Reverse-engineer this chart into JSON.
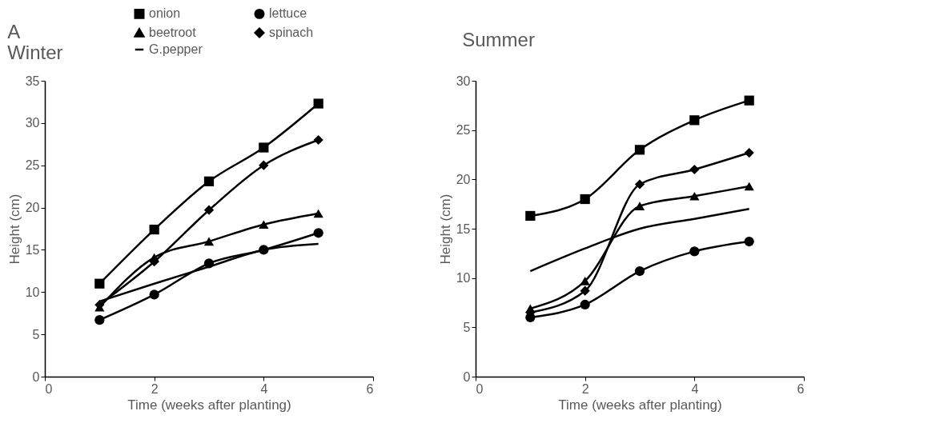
{
  "chart_data": [
    {
      "type": "line",
      "title": "A",
      "subtitle": "Winter",
      "xlabel": "Time (weeks after planting)",
      "ylabel": "Height (cm)",
      "x": [
        1,
        2,
        3,
        4,
        5
      ],
      "xlim": [
        0,
        6
      ],
      "xticks": [
        0,
        2,
        4,
        6
      ],
      "ylim": [
        0,
        35
      ],
      "yticks": [
        0,
        5,
        10,
        15,
        20,
        25,
        30,
        35
      ],
      "grid": false,
      "legend": "top",
      "series": [
        {
          "name": "onion",
          "color": "#000000",
          "marker": "square",
          "values": [
            11,
            17.4,
            23.1,
            27.1,
            32.3
          ]
        },
        {
          "name": "beetroot",
          "color": "#000000",
          "marker": "triangle",
          "values": [
            8.2,
            14.1,
            16,
            18,
            19.3
          ]
        },
        {
          "name": "G.pepper",
          "color": "#000000",
          "marker": "none",
          "values": [
            8.9,
            11,
            13,
            15,
            15.7
          ]
        },
        {
          "name": "lettuce",
          "color": "#000000",
          "marker": "circle",
          "values": [
            6.7,
            9.7,
            13.4,
            15,
            17
          ]
        },
        {
          "name": "spinach",
          "color": "#000000",
          "marker": "diamond",
          "values": [
            8.5,
            13.6,
            19.7,
            25,
            28
          ]
        }
      ]
    },
    {
      "type": "line",
      "title": "Summer",
      "xlabel": "Time (weeks after planting)",
      "ylabel": "Height (cm)",
      "x": [
        1,
        2,
        3,
        4,
        5
      ],
      "xlim": [
        0,
        6
      ],
      "xticks": [
        0,
        2,
        4,
        6
      ],
      "ylim": [
        0,
        30
      ],
      "yticks": [
        0,
        5,
        10,
        15,
        20,
        25,
        30
      ],
      "grid": false,
      "legend": "top",
      "series": [
        {
          "name": "onion",
          "color": "#000000",
          "marker": "square",
          "values": [
            16.3,
            18,
            23,
            26,
            28
          ]
        },
        {
          "name": "beetroot",
          "color": "#000000",
          "marker": "triangle",
          "values": [
            6.9,
            9.7,
            17.3,
            18.3,
            19.3
          ]
        },
        {
          "name": "G.pepper",
          "color": "#000000",
          "marker": "none",
          "values": [
            10.7,
            13,
            15,
            16,
            17
          ]
        },
        {
          "name": "lettuce",
          "color": "#000000",
          "marker": "circle",
          "values": [
            6,
            7.3,
            10.7,
            12.7,
            13.7
          ]
        },
        {
          "name": "spinach",
          "color": "#000000",
          "marker": "diamond",
          "values": [
            6.5,
            8.7,
            19.5,
            21,
            22.7
          ]
        }
      ]
    }
  ]
}
